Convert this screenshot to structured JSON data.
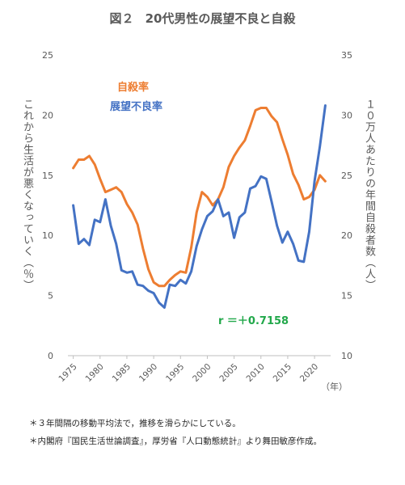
{
  "title": {
    "fig_no": "図２",
    "text": "20代男性の展望不良と自殺"
  },
  "notes": [
    "＊３年間隔の移動平均法で，推移を滑らかにしている。",
    "＊内閣府『国民生活世論調査』，厚労省『人口動態統計』より舞田敏彦作成。"
  ],
  "chart_data": {
    "type": "line",
    "x_unit_label": "（年）",
    "y_left": {
      "label": "これから生活が悪くなっていく（％）",
      "min": 0,
      "max": 25,
      "ticks": [
        0,
        5,
        10,
        15,
        20,
        25
      ]
    },
    "y_right": {
      "label": "１０万人あたりの年間自殺者数（人）",
      "min": 10,
      "max": 35,
      "ticks": [
        10,
        15,
        20,
        25,
        30,
        35
      ]
    },
    "x_ticks": [
      1975,
      1980,
      1985,
      1990,
      1995,
      2000,
      2005,
      2010,
      2015,
      2020
    ],
    "x_range": [
      1974,
      2023
    ],
    "grid": false,
    "legend_position": "top-left (inside)",
    "annotation": "r ＝＋0.7158",
    "series": [
      {
        "name": "自殺率",
        "axis": "right",
        "color": "#ed7d31",
        "x": [
          1975,
          1976,
          1977,
          1978,
          1979,
          1980,
          1981,
          1982,
          1983,
          1984,
          1985,
          1986,
          1987,
          1988,
          1989,
          1990,
          1991,
          1992,
          1993,
          1994,
          1995,
          1996,
          1997,
          1998,
          1999,
          2000,
          2001,
          2002,
          2003,
          2004,
          2005,
          2006,
          2007,
          2008,
          2009,
          2010,
          2011,
          2012,
          2013,
          2014,
          2015,
          2016,
          2017,
          2018,
          2019,
          2020,
          2021,
          2022
        ],
        "values": [
          25.6,
          26.3,
          26.3,
          26.6,
          25.9,
          24.7,
          23.6,
          23.8,
          24.0,
          23.6,
          22.6,
          21.9,
          20.9,
          18.9,
          17.2,
          16.1,
          15.8,
          15.8,
          16.3,
          16.7,
          17.0,
          16.9,
          19.0,
          21.9,
          23.6,
          23.2,
          22.5,
          23.0,
          24.0,
          25.7,
          26.6,
          27.3,
          27.9,
          29.1,
          30.4,
          30.6,
          30.6,
          29.9,
          29.4,
          28.0,
          26.7,
          25.1,
          24.2,
          23.0,
          23.2,
          23.8,
          25.0,
          24.5
        ]
      },
      {
        "name": "展望不良率",
        "axis": "left",
        "color": "#4472c4",
        "x": [
          1975,
          1976,
          1977,
          1978,
          1979,
          1980,
          1981,
          1982,
          1983,
          1984,
          1985,
          1986,
          1987,
          1988,
          1989,
          1990,
          1991,
          1992,
          1993,
          1994,
          1995,
          1996,
          1997,
          1998,
          1999,
          2000,
          2001,
          2002,
          2003,
          2004,
          2005,
          2006,
          2007,
          2008,
          2009,
          2010,
          2011,
          2012,
          2013,
          2014,
          2015,
          2016,
          2017,
          2018,
          2019,
          2020,
          2021,
          2022
        ],
        "values": [
          12.5,
          9.3,
          9.7,
          9.2,
          11.3,
          11.1,
          13.0,
          10.8,
          9.3,
          7.1,
          6.9,
          7.0,
          5.9,
          5.8,
          5.4,
          5.2,
          4.4,
          4.0,
          5.9,
          5.8,
          6.3,
          6.0,
          7.0,
          9.1,
          10.5,
          11.6,
          12.0,
          13.0,
          11.6,
          11.9,
          9.8,
          11.5,
          11.9,
          13.9,
          14.1,
          14.9,
          14.7,
          12.8,
          10.8,
          9.4,
          10.3,
          9.3,
          7.9,
          7.8,
          10.3,
          14.5,
          17.4,
          20.8
        ]
      }
    ]
  }
}
